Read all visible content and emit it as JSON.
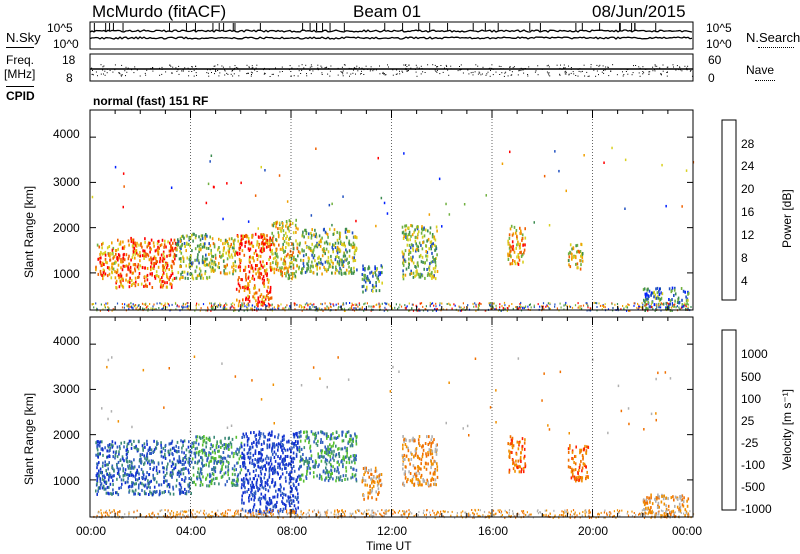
{
  "header": {
    "station": "McMurdo (fitACF)",
    "beam": "Beam 01",
    "date": "08/Jun/2015"
  },
  "noise_panel": {
    "left_label": "N.Sky",
    "right_label": "N.Search",
    "left_ticks": [
      "10^5",
      "10^0"
    ],
    "right_ticks": [
      "10^5",
      "10^0"
    ]
  },
  "freq_panel": {
    "left_label_line1": "Freq.",
    "left_label_line2": "[MHz]",
    "left_ticks": [
      "18",
      "8"
    ],
    "right_label": "Nave",
    "right_ticks": [
      "60",
      "0"
    ]
  },
  "cpid_panel": {
    "label": "CPID",
    "mode": "normal (fast) 151 RF"
  },
  "x_axis": {
    "label": "Time UT",
    "ticks": [
      "00:00",
      "04:00",
      "08:00",
      "12:00",
      "16:00",
      "20:00",
      "00:00"
    ]
  },
  "power_panel": {
    "ylabel": "Slant Range [km]",
    "yticks": [
      "4000",
      "3000",
      "2000",
      "1000"
    ],
    "colorbar_label": "Power [dB]",
    "colorbar_ticks": [
      "28",
      "24",
      "20",
      "16",
      "12",
      "8",
      "4"
    ],
    "colors": [
      "#0020ff",
      "#2050c0",
      "#3c8c50",
      "#70b040",
      "#d8d020",
      "#f0a000",
      "#f06000",
      "#ff0000"
    ]
  },
  "velocity_panel": {
    "ylabel": "Slant Range [km]",
    "yticks": [
      "4000",
      "3000",
      "2000",
      "1000"
    ],
    "colorbar_label": "Velocity [m s⁻¹]",
    "colorbar_ticks": [
      "1000",
      "500",
      "100",
      "25",
      "-25",
      "-100",
      "-500",
      "-1000"
    ],
    "colors": [
      "#1030d0",
      "#2e5cc0",
      "#3c8a78",
      "#58c030",
      "#b0b0b0",
      "#f09000",
      "#f07000",
      "#ff2000"
    ]
  },
  "chart_data": [
    {
      "type": "heatmap",
      "title": "Power",
      "xlabel": "Time UT",
      "ylabel": "Slant Range [km]",
      "xlim": [
        0,
        24
      ],
      "ylim": [
        180,
        4600
      ],
      "colorbar": {
        "label": "Power [dB]",
        "range": [
          0,
          30
        ],
        "ticks": [
          4,
          8,
          12,
          16,
          20,
          24,
          28
        ]
      },
      "regions": [
        {
          "t": [
            0.2,
            1.0
          ],
          "r": [
            900,
            1700
          ],
          "value": 22
        },
        {
          "t": [
            1.0,
            3.4
          ],
          "r": [
            700,
            1800
          ],
          "value": 27
        },
        {
          "t": [
            3.4,
            4.8
          ],
          "r": [
            900,
            1900
          ],
          "value": 14
        },
        {
          "t": [
            4.8,
            5.8
          ],
          "r": [
            1000,
            1800
          ],
          "value": 18
        },
        {
          "t": [
            5.8,
            7.2
          ],
          "r": [
            300,
            1900
          ],
          "value": 25
        },
        {
          "t": [
            7.2,
            8.3
          ],
          "r": [
            900,
            2200
          ],
          "value": 18
        },
        {
          "t": [
            8.3,
            10.6
          ],
          "r": [
            1000,
            2000
          ],
          "value": 14
        },
        {
          "t": [
            10.8,
            11.6
          ],
          "r": [
            600,
            1200
          ],
          "value": 10
        },
        {
          "t": [
            12.4,
            13.8
          ],
          "r": [
            900,
            2100
          ],
          "value": 12
        },
        {
          "t": [
            16.6,
            17.3
          ],
          "r": [
            1200,
            2100
          ],
          "value": 20
        },
        {
          "t": [
            19.0,
            19.6
          ],
          "r": [
            1100,
            1700
          ],
          "value": 18
        },
        {
          "t": [
            22.0,
            23.8
          ],
          "r": [
            200,
            700
          ],
          "value": 8
        }
      ]
    },
    {
      "type": "heatmap",
      "title": "Velocity",
      "xlabel": "Time UT",
      "ylabel": "Slant Range [km]",
      "xlim": [
        0,
        24
      ],
      "ylim": [
        180,
        4600
      ],
      "colorbar": {
        "label": "Velocity [m s-1]",
        "ticks": [
          1000,
          500,
          100,
          25,
          -25,
          -100,
          -500,
          -1000
        ]
      },
      "regions": [
        {
          "t": [
            0.2,
            4.0
          ],
          "r": [
            700,
            1900
          ],
          "value": 500
        },
        {
          "t": [
            4.0,
            6.0
          ],
          "r": [
            900,
            2000
          ],
          "value": 100
        },
        {
          "t": [
            6.0,
            8.3
          ],
          "r": [
            300,
            2100
          ],
          "value": 1000
        },
        {
          "t": [
            8.3,
            10.6
          ],
          "r": [
            1000,
            2100
          ],
          "value": 100
        },
        {
          "t": [
            10.8,
            11.6
          ],
          "r": [
            600,
            1300
          ],
          "value": -100
        },
        {
          "t": [
            12.4,
            13.8
          ],
          "r": [
            900,
            2000
          ],
          "value": -100
        },
        {
          "t": [
            16.6,
            17.3
          ],
          "r": [
            1200,
            2000
          ],
          "value": -500
        },
        {
          "t": [
            19.0,
            19.8
          ],
          "r": [
            1000,
            1800
          ],
          "value": -500
        },
        {
          "t": [
            22.0,
            23.8
          ],
          "r": [
            200,
            700
          ],
          "value": -100
        }
      ]
    }
  ]
}
